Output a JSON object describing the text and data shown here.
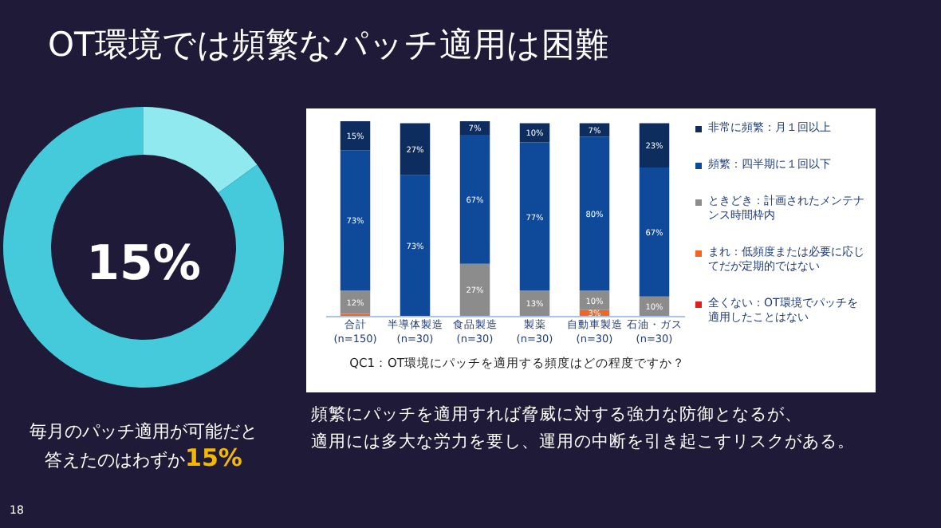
{
  "chart_data": [
    {
      "type": "donut",
      "title": "OT環境では頻繁なパッチ適用は困難",
      "categories": [
        null,
        null
      ],
      "values": [
        15,
        85
      ],
      "colors": [
        "#8fe9ef",
        "#45cadb"
      ],
      "annotations": [
        "15%",
        "毎月のパッチ適用が可能だと",
        "答えたのはわずか",
        "15%",
        "18"
      ]
    },
    {
      "type": "bar",
      "stacked": true,
      "xlabel": "QC1：OT環境にパッチを適用する頻度はどの程度ですか？",
      "categories": [
        "合計\n(n=150)",
        "半導体製造\n(n=30)",
        "食品製造\n(n=30)",
        "製薬\n(n=30)",
        "自動車製造\n(n=30)",
        "石油・ガス\n(n=30)"
      ],
      "series": [
        {
          "name": "全くない：OT環境でパッチを適用したことはない",
          "color": "#e0201b",
          "values": [
            null,
            null,
            null,
            null,
            null,
            null
          ],
          "value_labels": [
            null,
            null,
            null,
            null,
            null,
            null
          ]
        },
        {
          "name": "まれ：低頻度または必要に応じてだが定期的ではない",
          "color": "#f26522",
          "values": [
            1,
            null,
            null,
            null,
            3,
            null
          ],
          "value_labels": [
            null,
            null,
            null,
            null,
            "3%",
            null
          ]
        },
        {
          "name": "ときどき：計画されたメンテナンス時間枠内",
          "color": "#8c8c8c",
          "values": [
            12,
            null,
            27,
            13,
            10,
            10
          ],
          "value_labels": [
            "12%",
            null,
            "27%",
            "13%",
            "10%",
            "10%"
          ]
        },
        {
          "name": "頻繁：四半期に１回以下",
          "color": "#0e4a99",
          "values": [
            73,
            73,
            67,
            77,
            80,
            67
          ],
          "value_labels": [
            "73%",
            "73%",
            "67%",
            "77%",
            "80%",
            "67%"
          ]
        },
        {
          "name": "非常に頻繁：月１回以上",
          "color": "#0d2d5e",
          "values": [
            15,
            27,
            7,
            10,
            7,
            23
          ],
          "value_labels": [
            "15%",
            "27%",
            "7%",
            "10%",
            "7%",
            "23%"
          ]
        }
      ],
      "legend": "right",
      "annotations": [
        "頻繁にパッチを適用すれば脅威に対する強力な防御となるが、",
        "適用には多大な労力を要し、運用の中断を引き起こすリスクがある。"
      ]
    }
  ]
}
